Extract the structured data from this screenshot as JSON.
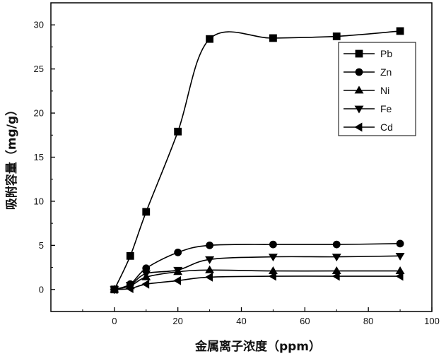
{
  "chart_data": {
    "type": "line",
    "xlabel": "金属离子浓度（ppm）",
    "ylabel": "吸附容量（mg/g）",
    "xlim": [
      -20,
      100
    ],
    "ylim": [
      -2.5,
      32.5
    ],
    "xticks": [
      0,
      20,
      40,
      60,
      80,
      100
    ],
    "yticks": [
      0,
      5,
      10,
      15,
      20,
      25,
      30
    ],
    "grid": false,
    "legend_position": "top-right",
    "x": [
      0,
      5,
      10,
      20,
      30,
      50,
      70,
      90
    ],
    "series": [
      {
        "name": "Pb",
        "marker": "square",
        "values": [
          0,
          3.8,
          8.8,
          17.9,
          28.4,
          28.5,
          28.7,
          29.3
        ]
      },
      {
        "name": "Zn",
        "marker": "circle",
        "values": [
          0,
          0.6,
          2.4,
          4.2,
          5.0,
          5.1,
          5.1,
          5.2
        ]
      },
      {
        "name": "Ni",
        "marker": "triangle-up",
        "values": [
          0,
          0.4,
          1.4,
          2.0,
          2.2,
          2.1,
          2.1,
          2.1
        ]
      },
      {
        "name": "Fe",
        "marker": "triangle-down",
        "values": [
          0,
          0.5,
          1.8,
          2.2,
          3.4,
          3.7,
          3.7,
          3.8
        ]
      },
      {
        "name": "Cd",
        "marker": "triangle-left",
        "values": [
          0,
          0.1,
          0.6,
          1.0,
          1.4,
          1.5,
          1.5,
          1.5
        ]
      }
    ]
  }
}
